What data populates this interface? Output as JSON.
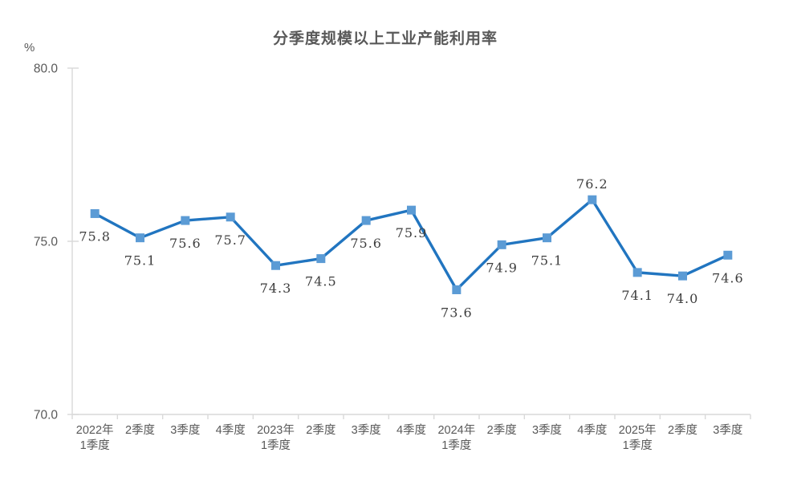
{
  "chart_data": {
    "type": "line",
    "title": "分季度规模以上工业产能利用率",
    "ylabel": "%",
    "xlabel": "",
    "categories": [
      "2022年\n1季度",
      "2季度",
      "3季度",
      "4季度",
      "2023年\n1季度",
      "2季度",
      "3季度",
      "4季度",
      "2024年\n1季度",
      "2季度",
      "3季度",
      "4季度",
      "2025年\n1季度",
      "2季度",
      "3季度"
    ],
    "values": [
      75.8,
      75.1,
      75.6,
      75.7,
      74.3,
      74.5,
      75.6,
      75.9,
      73.6,
      74.9,
      75.1,
      76.2,
      74.1,
      74.0,
      74.6
    ],
    "ylim": [
      70.0,
      80.0
    ],
    "yticks": [
      70.0,
      75.0,
      80.0
    ],
    "grid": false,
    "legend_position": "none",
    "marker_shape": "square",
    "label_side": [
      "below",
      "below",
      "below",
      "below",
      "below",
      "below",
      "below",
      "below",
      "below",
      "below",
      "below",
      "above",
      "below",
      "below",
      "below"
    ],
    "colors": {
      "line": "#2175c0",
      "marker": "#5b9bd5",
      "axis": "#d9d9d9",
      "axis_text": "#595959",
      "data_label": "#3d3d3d",
      "title": "#595959"
    }
  }
}
